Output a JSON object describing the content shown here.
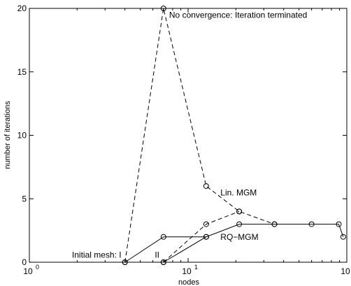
{
  "chart_data": {
    "type": "line",
    "title": "",
    "xlabel": "nodes",
    "ylabel": "number of iterations",
    "xscale": "log",
    "xlim": [
      1,
      100
    ],
    "ylim": [
      0,
      20
    ],
    "grid": false,
    "x_ticks": [
      {
        "value": 1,
        "base": "10",
        "exp": "0"
      },
      {
        "value": 10,
        "base": "10",
        "exp": "1"
      },
      {
        "value": 100,
        "base": "10",
        "exp": ""
      }
    ],
    "y_ticks": [
      0,
      5,
      10,
      15,
      20
    ],
    "series": [
      {
        "name": "Lin. MGM",
        "style": "dashed",
        "color": "#000000",
        "points": [
          [
            4,
            0
          ],
          [
            7,
            20
          ],
          [
            13,
            6
          ],
          [
            21,
            4
          ],
          [
            35,
            3
          ]
        ]
      },
      {
        "name": "RQ-MGM",
        "style": "solid",
        "color": "#000000",
        "points": [
          [
            4,
            0
          ],
          [
            7,
            2
          ],
          [
            13,
            2
          ],
          [
            21,
            3
          ],
          [
            35,
            3
          ],
          [
            60,
            3
          ],
          [
            89,
            3
          ],
          [
            95,
            2
          ]
        ]
      },
      {
        "name": "",
        "style": "dashed",
        "color": "#000000",
        "points": [
          [
            7,
            0
          ],
          [
            13,
            3
          ],
          [
            21,
            4
          ]
        ]
      },
      {
        "name": "",
        "style": "solid",
        "color": "#000000",
        "points": [
          [
            7,
            0
          ],
          [
            13,
            2
          ]
        ]
      }
    ],
    "annotations": [
      {
        "id": "no-convergence",
        "text": "No convergence: Iteration terminated",
        "x": 7.6,
        "y": 19.25,
        "anchor": "start"
      },
      {
        "id": "lin-mgm",
        "text": "Lin. MGM",
        "x": 16,
        "y": 5.25,
        "anchor": "start"
      },
      {
        "id": "rq-mgm",
        "text": "RQ−MGM",
        "x": 16,
        "y": 1.75,
        "anchor": "start"
      },
      {
        "id": "initial-mesh",
        "text": "Initial mesh: I",
        "x": 3.8,
        "y": 0.35,
        "anchor": "end"
      },
      {
        "id": "mesh-ii",
        "text": "II",
        "x": 6.6,
        "y": 0.35,
        "anchor": "end"
      }
    ]
  }
}
